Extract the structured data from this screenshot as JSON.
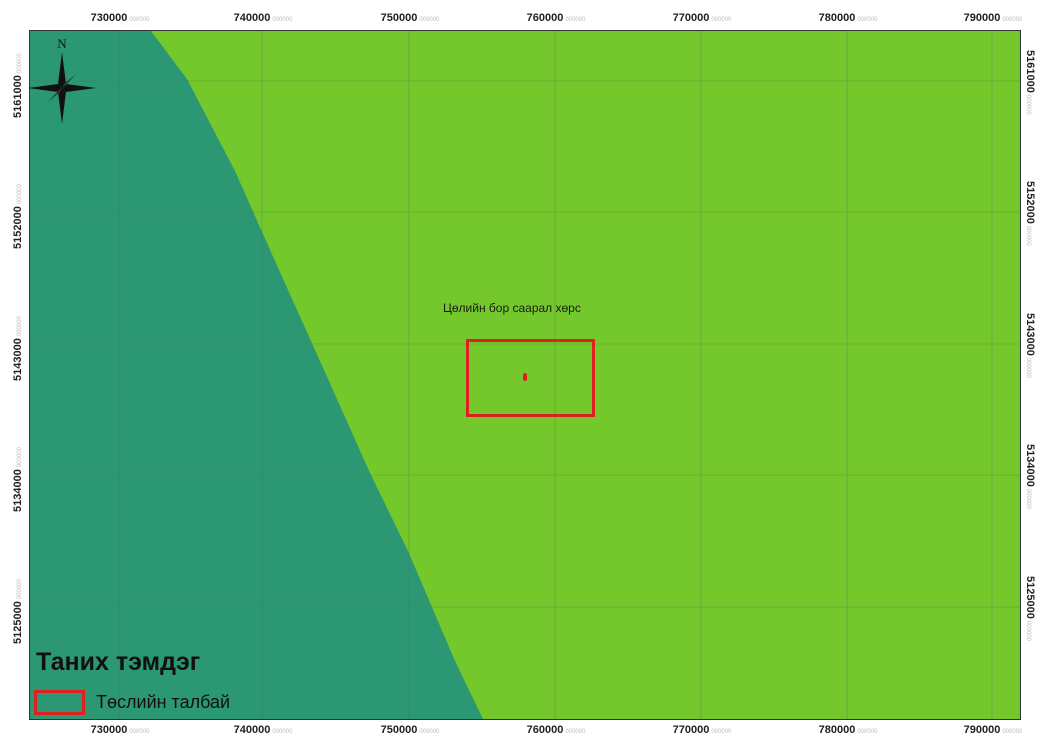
{
  "colors": {
    "teal_zone": "#2b9873",
    "green_zone": "#74c82c",
    "grid": "#4a7a4a",
    "highlight": "#e02020"
  },
  "axes": {
    "x_ticks": [
      "730000",
      "740000",
      "750000",
      "760000",
      "770000",
      "780000",
      "790000"
    ],
    "y_ticks": [
      "5161000",
      "5152000",
      "5143000",
      "5134000",
      "5125000"
    ],
    "tick_suffix": "000000"
  },
  "map": {
    "soil_label": "Цөлийн бор саарал хөрс",
    "north_label": "N",
    "compass": "north-arrow-icon"
  },
  "legend": {
    "title": "Таних тэмдэг",
    "item_label": "Төслийн талбай"
  }
}
